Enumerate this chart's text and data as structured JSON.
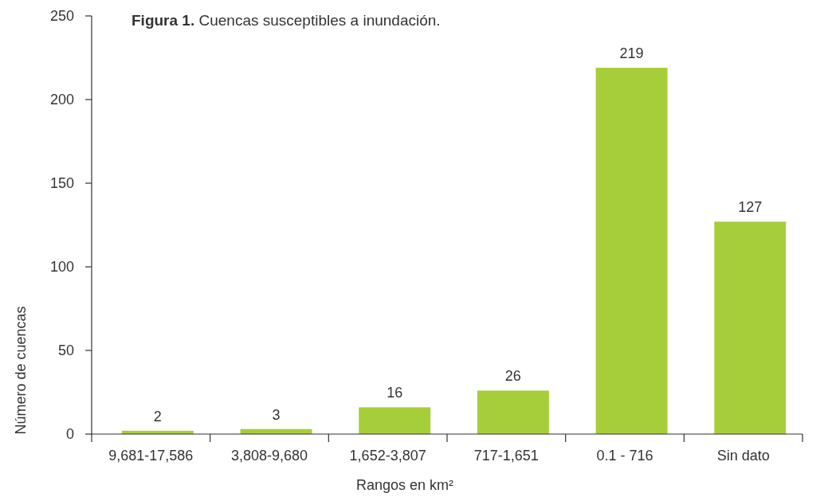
{
  "chart_data": {
    "type": "bar",
    "title": "Figura 1. Cuencas susceptibles a inundación.",
    "xlabel": "Rangos en km²",
    "ylabel": "Número de cuencas",
    "categories": [
      "9,681-17,586",
      "3,808-9,680",
      "1,652-3,807",
      "717-1,651",
      "0.1 - 716",
      "Sin dato"
    ],
    "values": [
      2,
      3,
      16,
      26,
      219,
      127
    ],
    "color": "#a6ce39",
    "ylim": [
      0,
      250
    ],
    "yticks": [
      0,
      50,
      100,
      150,
      200,
      250
    ],
    "data_labels": true
  }
}
